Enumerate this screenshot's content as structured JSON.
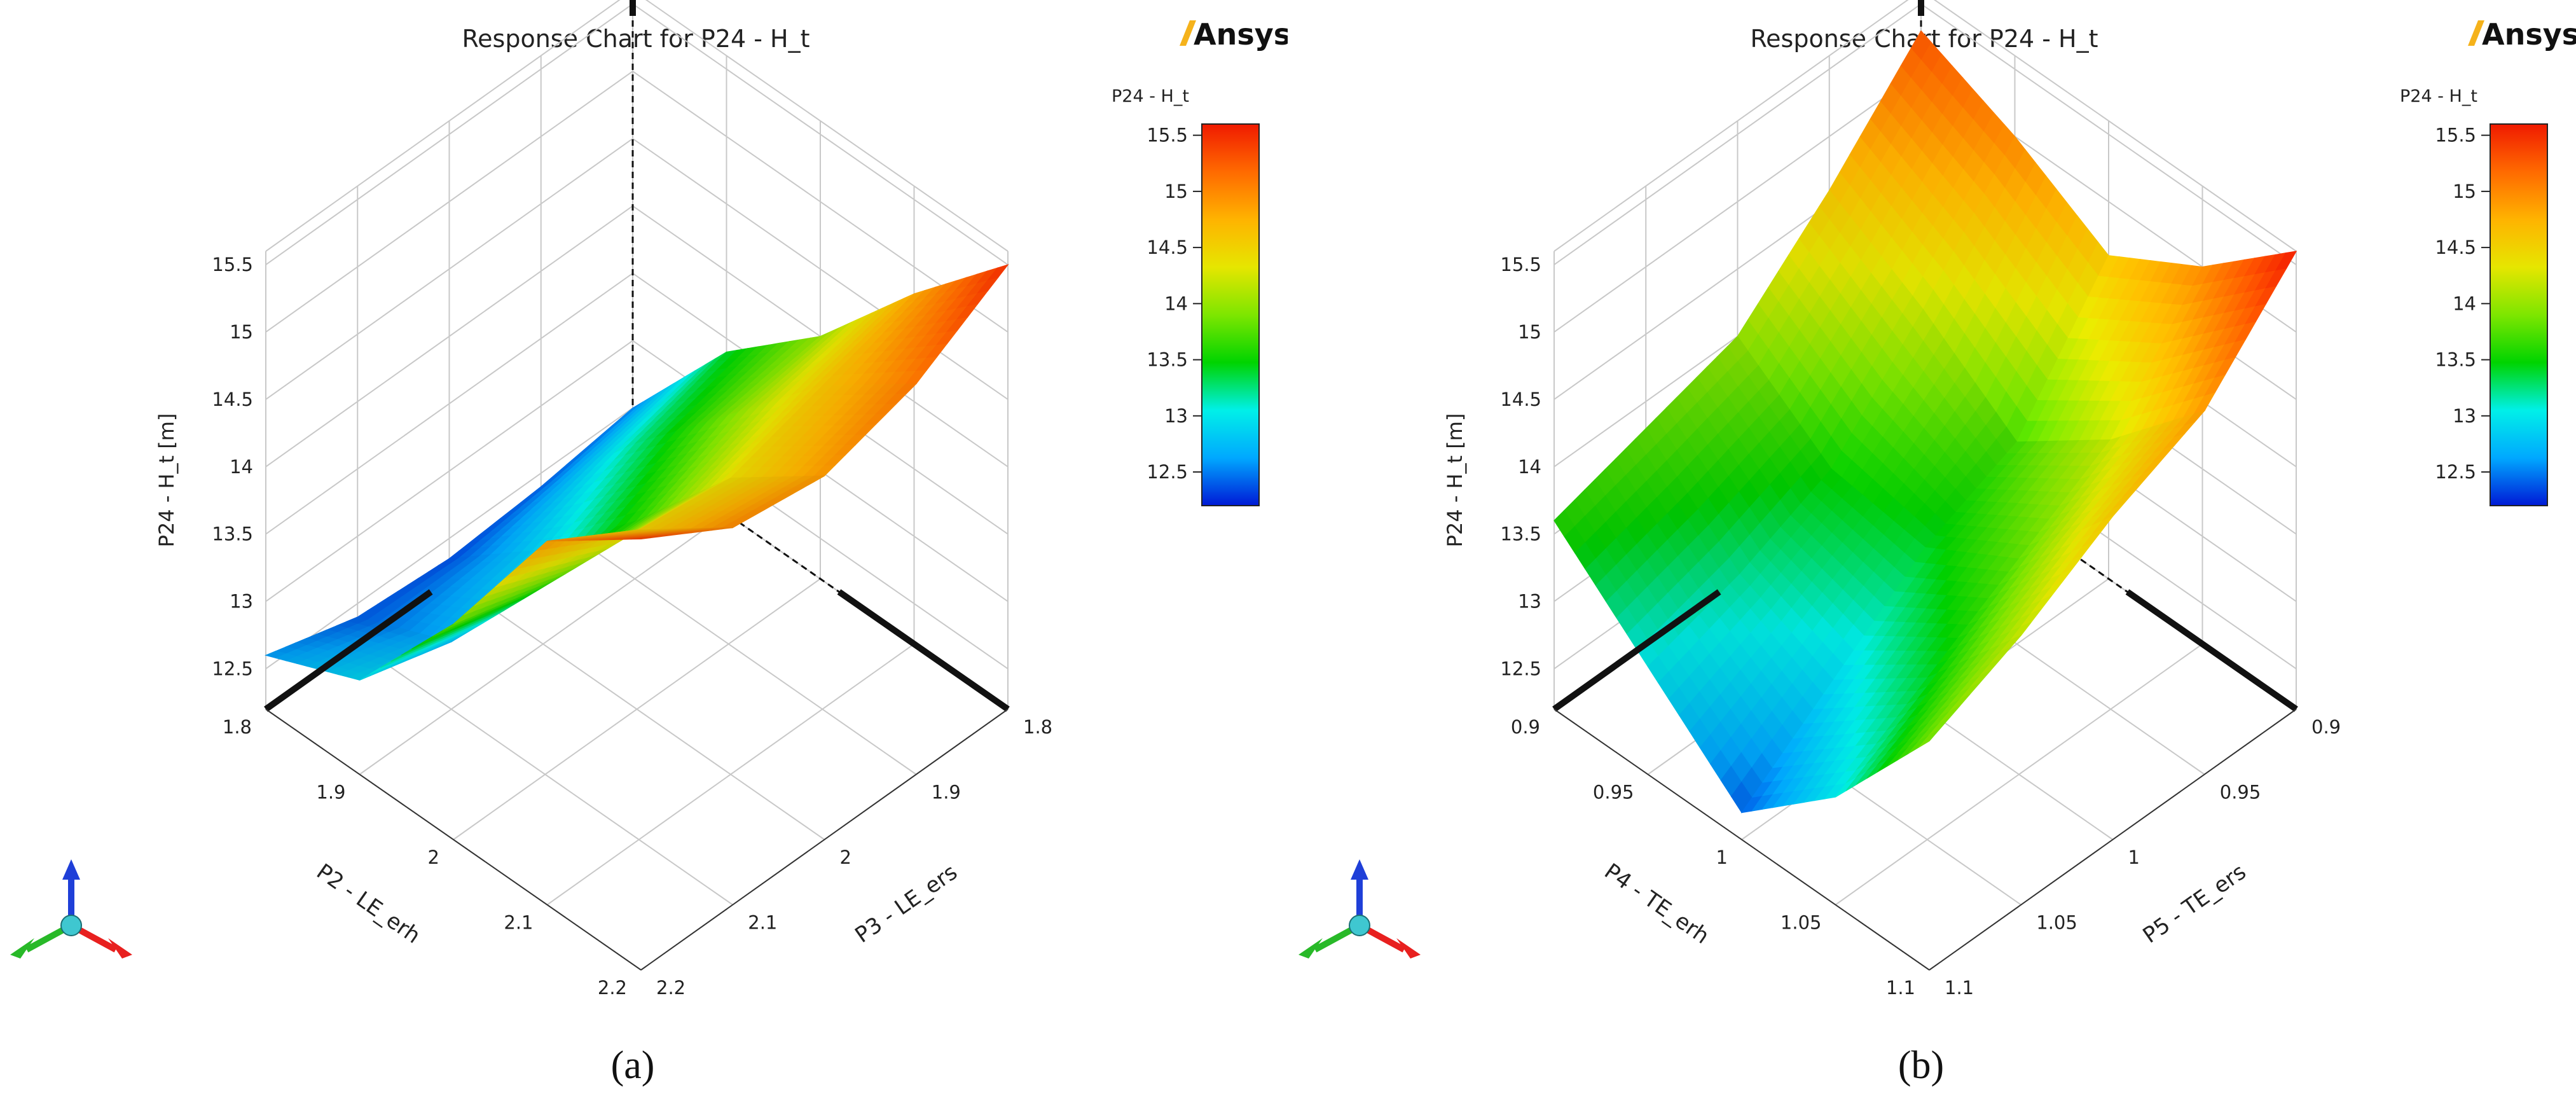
{
  "colors": {
    "axis": "#111111",
    "grid": "#c8c8c8",
    "text": "#222222",
    "logo_slash": "#f5b21b",
    "logo_text": "#111111",
    "triad_z": "#1f3fd8",
    "triad_x": "#e8201f",
    "triad_y": "#28b928",
    "triad_origin": "#3fc7d0",
    "colormap": [
      "#0019d6",
      "#00a8ff",
      "#00f0e8",
      "#00d400",
      "#7ee600",
      "#e6e600",
      "#ffb300",
      "#ff6a00",
      "#f01a00"
    ]
  },
  "icons": {
    "logo": "ansys-logo",
    "triad": "coordinate-triad-icon"
  },
  "chart_data": [
    {
      "type": "surface",
      "panel_label": "(a)",
      "title": "Response Chart for P24 - H_t",
      "brand": "Ansys",
      "zlabel": "P24 - H_t  [m]",
      "xlabel": "P2 - LE_erh",
      "ylabel": "P3 - LE_ers",
      "x_ticks": [
        "1.8",
        "1.9",
        "2",
        "2.1",
        "2.2"
      ],
      "y_ticks": [
        "1.8",
        "1.9",
        "2",
        "2.1",
        "2.2"
      ],
      "z_ticks": [
        "12.5",
        "13",
        "13.5",
        "14",
        "14.5",
        "15",
        "15.5"
      ],
      "xlim": [
        1.8,
        2.2
      ],
      "ylim": [
        1.8,
        2.2
      ],
      "zlim": [
        12.2,
        15.6
      ],
      "colorbar": {
        "title": "P24 - H_t",
        "ticks": [
          "15.5",
          "15",
          "14.5",
          "14",
          "13.5",
          "13",
          "12.5"
        ],
        "range": [
          12.2,
          15.6
        ]
      },
      "x_values": [
        1.8,
        1.9,
        2.0,
        2.1,
        2.2
      ],
      "y_values": [
        1.8,
        1.9,
        2.0,
        2.1,
        2.2
      ],
      "z_grid": [
        [
          12.5,
          13.4,
          14.0,
          14.8,
          15.5
        ],
        [
          12.4,
          13.2,
          13.9,
          14.6,
          15.1
        ],
        [
          12.35,
          12.9,
          13.6,
          14.4,
          14.9
        ],
        [
          12.4,
          12.7,
          13.6,
          14.5,
          15.0
        ],
        [
          12.6,
          12.9,
          13.8,
          14.9,
          15.4
        ]
      ]
    },
    {
      "type": "surface",
      "panel_label": "(b)",
      "title": "Response Chart for P24 - H_t",
      "brand": "Ansys",
      "zlabel": "P24 - H_t  [m]",
      "xlabel": "P4 - TE_erh",
      "ylabel": "P5 - TE_ers",
      "x_ticks": [
        "0.9",
        "0.95",
        "1",
        "1.05",
        "1.1"
      ],
      "y_ticks": [
        "0.9",
        "0.95",
        "1",
        "1.05",
        "1.1"
      ],
      "z_ticks": [
        "12.5",
        "13",
        "13.5",
        "14",
        "14.5",
        "15",
        "15.5"
      ],
      "xlim": [
        0.9,
        1.1
      ],
      "ylim": [
        0.9,
        1.1
      ],
      "zlim": [
        12.2,
        15.6
      ],
      "colorbar": {
        "title": "P24 - H_t",
        "ticks": [
          "15.5",
          "15",
          "14.5",
          "14",
          "13.5",
          "13",
          "12.5"
        ],
        "range": [
          12.2,
          15.6
        ]
      },
      "x_values": [
        0.9,
        0.95,
        1.0,
        1.05,
        1.1
      ],
      "y_values": [
        0.9,
        0.95,
        1.0,
        1.05,
        1.1
      ],
      "z_grid": [
        [
          15.3,
          15.0,
          14.6,
          15.0,
          15.6
        ],
        [
          14.6,
          14.2,
          13.7,
          14.2,
          14.9
        ],
        [
          14.0,
          13.5,
          13.4,
          13.8,
          14.6
        ],
        [
          13.8,
          13.2,
          12.9,
          13.4,
          14.2
        ],
        [
          13.6,
          13.0,
          12.4,
          13.0,
          13.9
        ]
      ]
    }
  ]
}
